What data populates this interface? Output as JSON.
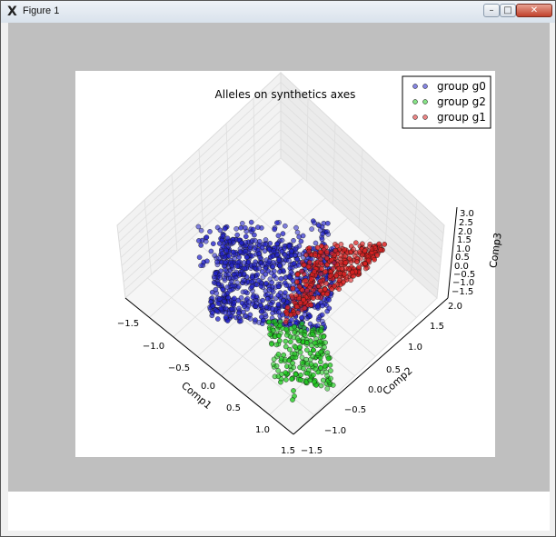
{
  "window": {
    "title": "Figure 1",
    "app_icon": "X",
    "minimize_symbol": "–",
    "maximize_symbol": "□",
    "close_symbol": "✕"
  },
  "chart_data": {
    "type": "scatter",
    "title": "Alleles on synthetics axes",
    "xlabel": "Comp1",
    "ylabel": "Comp2",
    "zlabel": "Comp3",
    "x_ticks": [
      "−1.5",
      "−1.0",
      "−0.5",
      "0.0",
      "0.5",
      "1.0",
      "1.5"
    ],
    "y_ticks": [
      "−1.5",
      "−1.0",
      "−0.5",
      "0.0",
      "0.5",
      "1.0",
      "1.5",
      "2.0"
    ],
    "z_ticks": [
      "−1.5",
      "−1.0",
      "−0.5",
      "0.0",
      "0.5",
      "1.0",
      "1.5",
      "2.0",
      "2.5",
      "3.0"
    ],
    "xlim": [
      -1.5,
      1.5
    ],
    "ylim": [
      -1.5,
      2.0
    ],
    "zlim": [
      -1.5,
      3.0
    ],
    "grid": true,
    "legend_position": "top-right",
    "series": [
      {
        "name": "group g0",
        "color": "#2222cc"
      },
      {
        "name": "group g2",
        "color": "#22cc22"
      },
      {
        "name": "group g1",
        "color": "#dd2222"
      }
    ]
  }
}
